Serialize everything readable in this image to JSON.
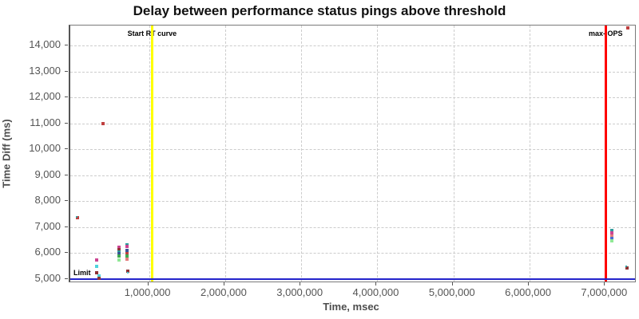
{
  "chart_data": {
    "type": "scatter",
    "title": "Delay between performance status pings above threshold",
    "xlabel": "Time, msec",
    "ylabel": "Time Diff (ms)",
    "xlim": [
      -35000,
      7385000
    ],
    "ylim": [
      4900,
      14780
    ],
    "x_ticks": [
      1000000,
      2000000,
      3000000,
      4000000,
      5000000,
      6000000,
      7000000
    ],
    "y_ticks": [
      5000,
      6000,
      7000,
      8000,
      9000,
      10000,
      11000,
      12000,
      13000,
      14000
    ],
    "grid": "dashed",
    "legend": "none",
    "colors": {
      "crimson": "#bf4040",
      "darkred": "#8f3333",
      "magenta": "#cc4492",
      "teal": "#2f9d9d",
      "navy": "#3c5498",
      "blue": "#4a6ed0",
      "green": "#3fa94f",
      "lightgreen": "#90e896",
      "cyan": "#4ed3dc",
      "salmon": "#e37e7e"
    },
    "markers": [
      {
        "type": "hline",
        "label": "Limit",
        "y": 5000,
        "color": "#2424cc"
      },
      {
        "type": "vline",
        "label": "Start RT curve",
        "x": 1040000,
        "color": "#ffff00"
      },
      {
        "type": "vline",
        "label": "max-jOPS",
        "x": 7000000,
        "color": "#ff0000"
      }
    ],
    "points": [
      {
        "x": 56000,
        "y": 7350,
        "c": "crimson"
      },
      {
        "x": 48000,
        "y": 7390,
        "c": "teal",
        "s": 2
      },
      {
        "x": 400000,
        "y": 10980,
        "c": "crimson"
      },
      {
        "x": 311000,
        "y": 5730,
        "c": "magenta"
      },
      {
        "x": 311000,
        "y": 5470,
        "c": "cyan"
      },
      {
        "x": 311000,
        "y": 5240,
        "c": "darkred"
      },
      {
        "x": 343000,
        "y": 5130,
        "c": "cyan"
      },
      {
        "x": 343000,
        "y": 5010,
        "c": "darkred"
      },
      {
        "x": 600000,
        "y": 6230,
        "c": "magenta"
      },
      {
        "x": 600000,
        "y": 6130,
        "c": "darkred"
      },
      {
        "x": 600000,
        "y": 6050,
        "c": "teal"
      },
      {
        "x": 600000,
        "y": 5980,
        "c": "navy"
      },
      {
        "x": 600000,
        "y": 5870,
        "c": "green"
      },
      {
        "x": 600000,
        "y": 5740,
        "c": "lightgreen"
      },
      {
        "x": 715000,
        "y": 6320,
        "c": "teal"
      },
      {
        "x": 715000,
        "y": 6240,
        "c": "magenta"
      },
      {
        "x": 715000,
        "y": 6090,
        "c": "navy"
      },
      {
        "x": 715000,
        "y": 5980,
        "c": "crimson"
      },
      {
        "x": 715000,
        "y": 5870,
        "c": "green"
      },
      {
        "x": 715000,
        "y": 5770,
        "c": "salmon"
      },
      {
        "x": 716000,
        "y": 5310,
        "c": "darkred"
      },
      {
        "x": 716000,
        "y": 5250,
        "c": "cyan",
        "s": 2
      },
      {
        "x": 7085000,
        "y": 6880,
        "c": "teal"
      },
      {
        "x": 7085000,
        "y": 6790,
        "c": "magenta"
      },
      {
        "x": 7085000,
        "y": 6650,
        "c": "salmon"
      },
      {
        "x": 7085000,
        "y": 6560,
        "c": "blue"
      },
      {
        "x": 7085000,
        "y": 6470,
        "c": "lightgreen"
      },
      {
        "x": 7285000,
        "y": 5420,
        "c": "darkred"
      },
      {
        "x": 7270000,
        "y": 5490,
        "c": "teal",
        "s": 2
      },
      {
        "x": 7290000,
        "y": 14700,
        "c": "crimson"
      }
    ]
  }
}
